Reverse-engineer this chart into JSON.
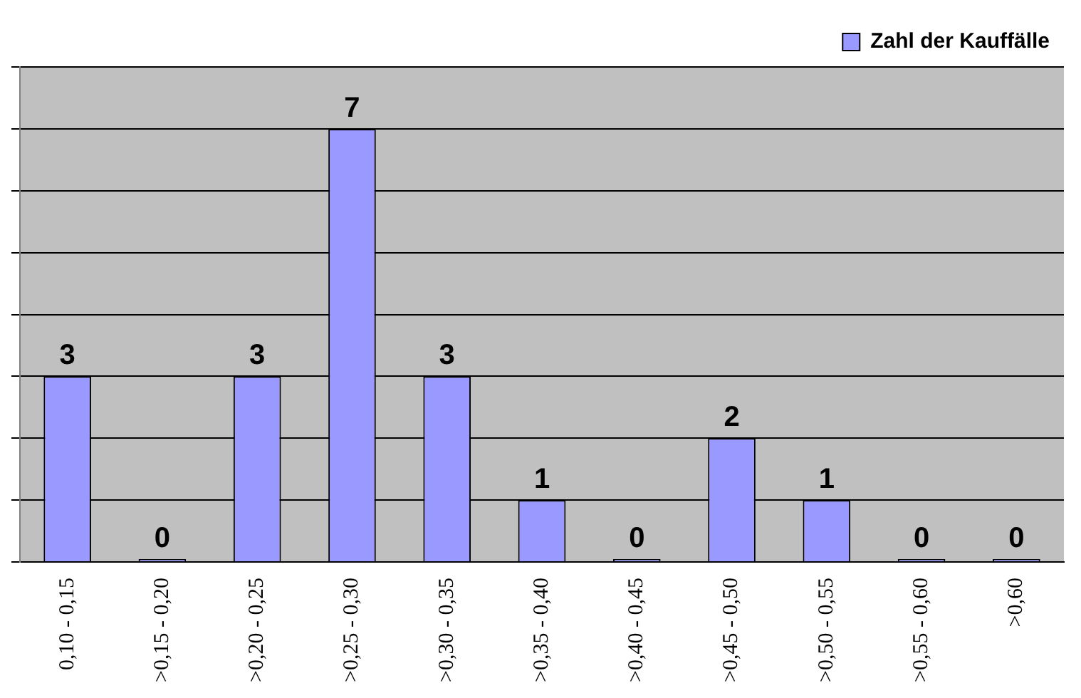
{
  "chart_data": {
    "type": "bar",
    "categories": [
      "0,10 - 0,15",
      ">0,15 - 0,20",
      ">0,20 - 0,25",
      ">0,25 - 0,30",
      ">0,30 - 0,35",
      ">0,35 - 0,40",
      ">0,40 - 0,45",
      ">0,45 - 0,50",
      ">0,50 - 0,55",
      ">0,55 - 0,60",
      ">0,60"
    ],
    "series": [
      {
        "name": "Zahl der Kauffälle",
        "color": "#9999ff",
        "values": [
          3,
          0,
          3,
          7,
          3,
          1,
          0,
          2,
          1,
          0,
          0
        ]
      }
    ],
    "ylim": [
      0,
      8
    ],
    "yticks": [
      {
        "value": 0,
        "label": null
      },
      {
        "value": 1,
        "label": null
      },
      {
        "value": 2,
        "label": null
      },
      {
        "value": 3,
        "label": null
      },
      {
        "value": 4,
        "label": null
      },
      {
        "value": 5,
        "label": null
      },
      {
        "value": 6,
        "label": null
      },
      {
        "value": 7,
        "label": null
      },
      {
        "value": 8,
        "label": null
      }
    ],
    "tick_labels": "x",
    "grid": "y",
    "legend": "top right",
    "data_labels": true
  }
}
